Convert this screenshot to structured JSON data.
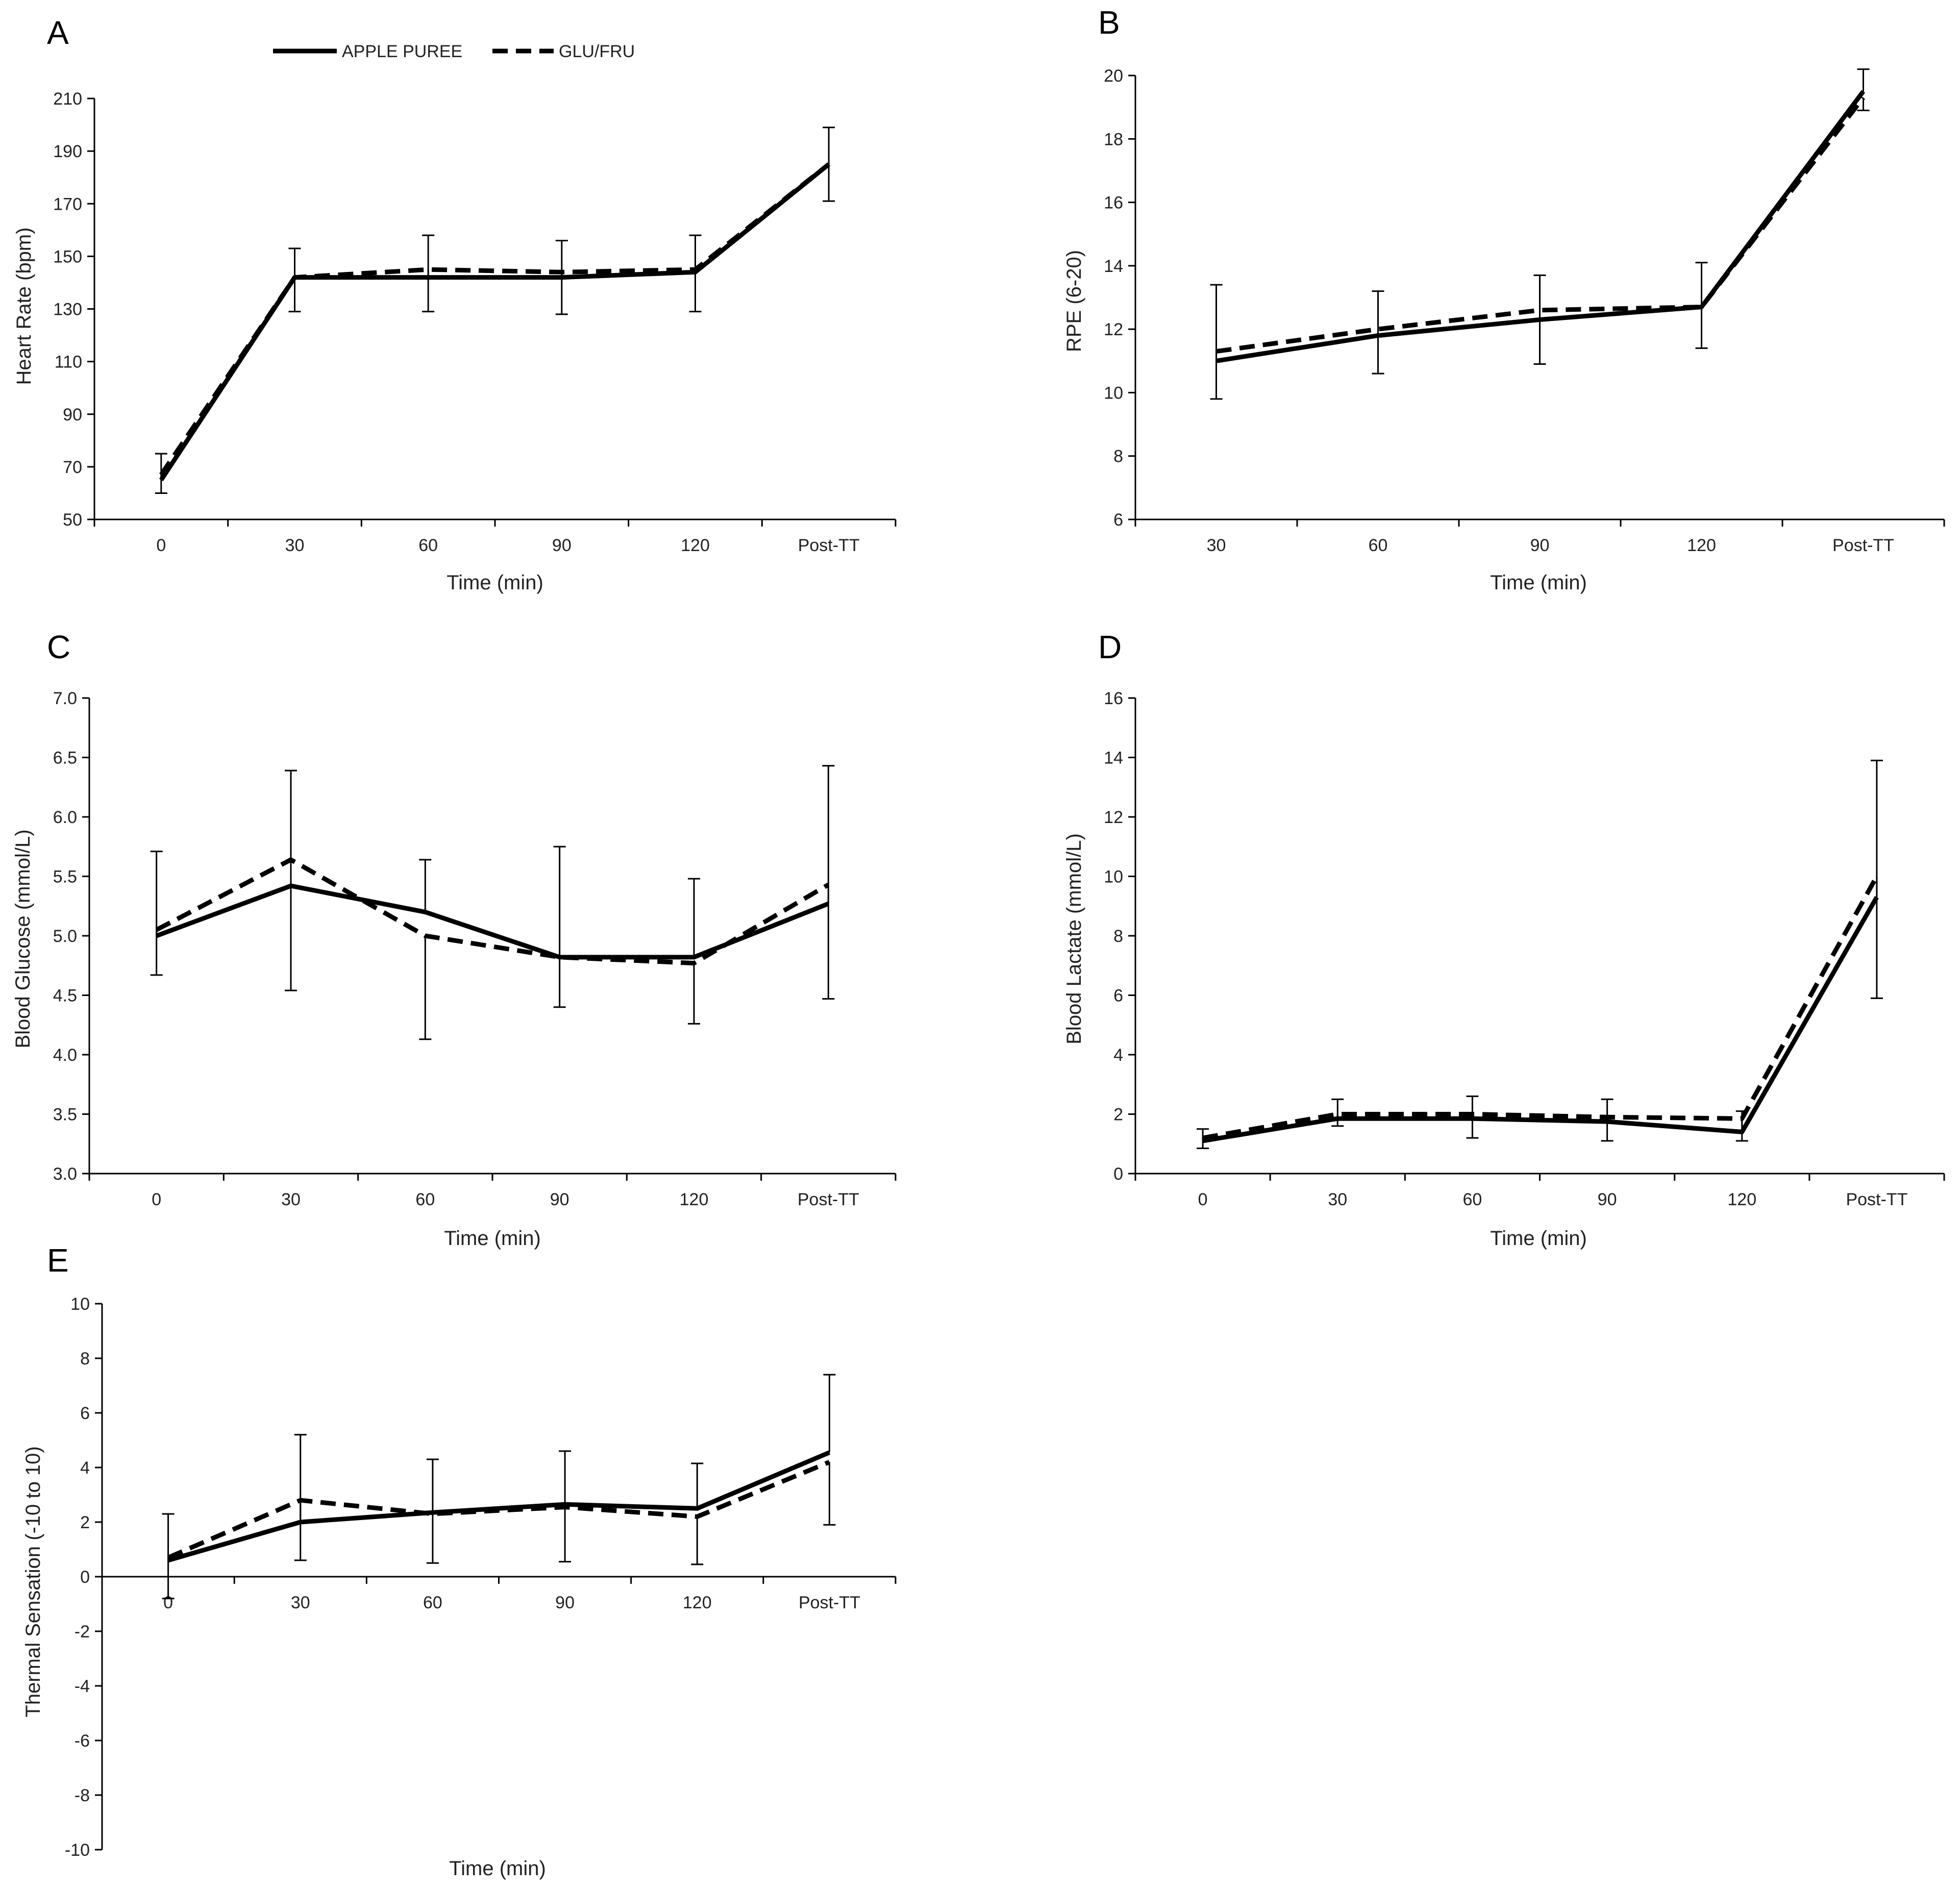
{
  "legend": {
    "series": [
      {
        "name": "APPLE PUREE",
        "style": "solid"
      },
      {
        "name": "GLU/FRU",
        "style": "dashed"
      }
    ]
  },
  "colors": {
    "line": "#000000",
    "text": "#222222",
    "background": "#ffffff"
  },
  "chart_data": [
    {
      "panel": "A",
      "type": "line",
      "title": "",
      "xlabel": "Time (min)",
      "ylabel": "Heart Rate (bpm)",
      "categories": [
        "0",
        "30",
        "60",
        "90",
        "120",
        "Post-TT"
      ],
      "ylim": [
        50,
        210
      ],
      "yticks": [
        50,
        70,
        90,
        110,
        130,
        150,
        170,
        190,
        210
      ],
      "series": [
        {
          "name": "APPLE PUREE",
          "style": "solid",
          "values": [
            65,
            142,
            142,
            142,
            144,
            185
          ],
          "err_upper": [
            75,
            153,
            158,
            156,
            158,
            199
          ]
        },
        {
          "name": "GLU/FRU",
          "style": "dashed",
          "values": [
            67,
            142,
            145,
            144,
            145,
            185
          ],
          "err_lower": [
            60,
            129,
            129,
            128,
            129,
            171
          ]
        }
      ]
    },
    {
      "panel": "B",
      "type": "line",
      "title": "",
      "xlabel": "Time (min)",
      "ylabel": "RPE (6-20)",
      "categories": [
        "30",
        "60",
        "90",
        "120",
        "Post-TT"
      ],
      "ylim": [
        6,
        20
      ],
      "yticks": [
        6,
        8,
        10,
        12,
        14,
        16,
        18,
        20
      ],
      "series": [
        {
          "name": "APPLE PUREE",
          "style": "solid",
          "values": [
            11.0,
            11.8,
            12.3,
            12.7,
            19.5
          ],
          "err_upper": [
            13.4,
            13.2,
            13.7,
            14.1,
            20.2
          ]
        },
        {
          "name": "GLU/FRU",
          "style": "dashed",
          "values": [
            11.3,
            12.0,
            12.6,
            12.7,
            19.3
          ],
          "err_lower": [
            9.8,
            10.6,
            10.9,
            11.4,
            18.9
          ]
        }
      ]
    },
    {
      "panel": "C",
      "type": "line",
      "title": "",
      "xlabel": "Time (min)",
      "ylabel": "Blood Glucose (mmol/L)",
      "categories": [
        "0",
        "30",
        "60",
        "90",
        "120",
        "Post-TT"
      ],
      "ylim": [
        3.0,
        7.0
      ],
      "yticks": [
        "3.0",
        "3.5",
        "4.0",
        "4.5",
        "5.0",
        "5.5",
        "6.0",
        "6.5",
        "7.0"
      ],
      "series": [
        {
          "name": "APPLE PUREE",
          "style": "solid",
          "values": [
            5.0,
            5.42,
            5.2,
            4.82,
            4.82,
            5.27
          ],
          "err_upper": [
            5.71,
            6.39,
            5.64,
            5.75,
            5.48,
            6.43
          ]
        },
        {
          "name": "GLU/FRU",
          "style": "dashed",
          "values": [
            5.05,
            5.64,
            5.0,
            4.82,
            4.77,
            5.43
          ],
          "err_lower": [
            4.67,
            4.54,
            4.13,
            4.4,
            4.26,
            4.47
          ]
        }
      ]
    },
    {
      "panel": "D",
      "type": "line",
      "title": "",
      "xlabel": "Time (min)",
      "ylabel": "Blood Lactate (mmol/L)",
      "categories": [
        "0",
        "30",
        "60",
        "90",
        "120",
        "Post-TT"
      ],
      "ylim": [
        0,
        16
      ],
      "yticks": [
        0,
        2,
        4,
        6,
        8,
        10,
        12,
        14,
        16
      ],
      "series": [
        {
          "name": "APPLE PUREE",
          "style": "solid",
          "values": [
            1.1,
            1.85,
            1.85,
            1.75,
            1.4,
            9.3
          ],
          "err_upper": [
            1.5,
            2.5,
            2.6,
            2.5,
            2.1,
            13.9
          ]
        },
        {
          "name": "GLU/FRU",
          "style": "dashed",
          "values": [
            1.2,
            2.0,
            2.0,
            1.9,
            1.85,
            10.0
          ],
          "err_lower": [
            0.85,
            1.6,
            1.2,
            1.1,
            1.1,
            5.9
          ]
        }
      ]
    },
    {
      "panel": "E",
      "type": "line",
      "title": "",
      "xlabel": "Time (min)",
      "ylabel": "Thermal Sensation  (-10 to 10)",
      "categories": [
        "0",
        "30",
        "60",
        "90",
        "120",
        "Post-TT"
      ],
      "ylim": [
        -10,
        10
      ],
      "yticks": [
        -10,
        -8,
        -6,
        -4,
        -2,
        0,
        2,
        4,
        6,
        8,
        10
      ],
      "series": [
        {
          "name": "APPLE PUREE",
          "style": "solid",
          "values": [
            0.6,
            2.0,
            2.35,
            2.65,
            2.5,
            4.55
          ],
          "err_upper": [
            2.3,
            5.2,
            4.3,
            4.6,
            4.15,
            7.4
          ]
        },
        {
          "name": "GLU/FRU",
          "style": "dashed",
          "values": [
            0.7,
            2.8,
            2.3,
            2.55,
            2.2,
            4.2
          ],
          "err_lower": [
            -0.8,
            0.6,
            0.5,
            0.55,
            0.45,
            1.9
          ]
        }
      ]
    }
  ]
}
